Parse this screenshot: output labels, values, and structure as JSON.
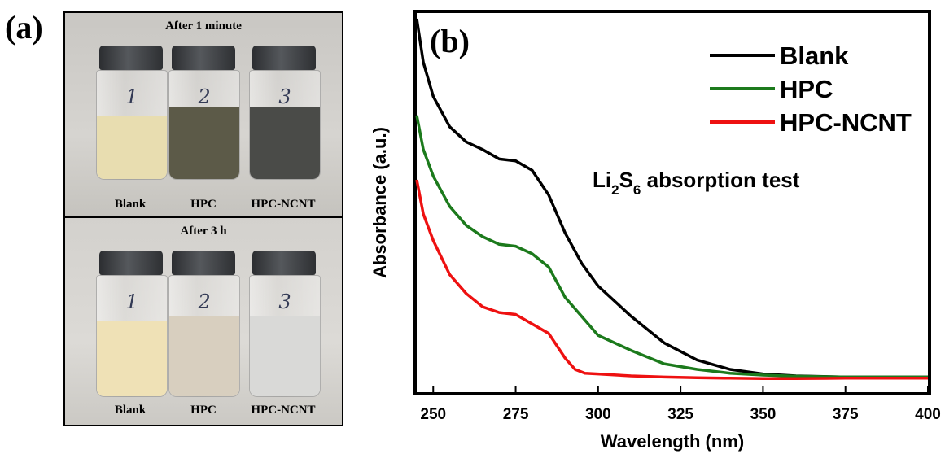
{
  "panel_a": {
    "label": "(a)",
    "top": {
      "title": "After 1 minute",
      "vials": [
        {
          "mark": "1",
          "name": "Blank",
          "liquid": "#e8ddb0"
        },
        {
          "mark": "2",
          "name": "HPC",
          "liquid": "#5c5a48"
        },
        {
          "mark": "3",
          "name": "HPC-NCNT",
          "liquid": "#4a4b48"
        }
      ]
    },
    "bottom": {
      "title": "After 3 h",
      "vials": [
        {
          "mark": "1",
          "name": "Blank",
          "liquid": "#efe1b6"
        },
        {
          "mark": "2",
          "name": "HPC",
          "liquid": "#d8cfbf"
        },
        {
          "mark": "3",
          "name": "HPC-NCNT",
          "liquid": "#d9d9d7"
        }
      ]
    }
  },
  "chart_data": {
    "type": "line",
    "panel_label": "(b)",
    "title": "",
    "annotation": {
      "main": "Li",
      "sub1": "2",
      "mid": "S",
      "sub2": "6",
      "rest": " absorption test"
    },
    "xlabel": "Wavelength (nm)",
    "ylabel": "Absorbance (a.u.)",
    "xlim": [
      245,
      400
    ],
    "ylim": [
      0,
      1
    ],
    "xticks": [
      250,
      275,
      300,
      325,
      350,
      375,
      400
    ],
    "show_yticks": false,
    "grid": false,
    "legend_position": "top-right",
    "series": [
      {
        "name": "Blank",
        "color": "#000000",
        "x": [
          245,
          247,
          250,
          255,
          260,
          265,
          270,
          275,
          280,
          285,
          290,
          295,
          300,
          310,
          320,
          330,
          340,
          350,
          360,
          375,
          400
        ],
        "y": [
          0.985,
          0.87,
          0.78,
          0.7,
          0.66,
          0.64,
          0.615,
          0.61,
          0.585,
          0.52,
          0.42,
          0.34,
          0.28,
          0.2,
          0.13,
          0.085,
          0.06,
          0.048,
          0.043,
          0.04,
          0.04
        ]
      },
      {
        "name": "HPC",
        "color": "#1c7a1c",
        "x": [
          245,
          247,
          250,
          255,
          260,
          265,
          270,
          275,
          280,
          285,
          290,
          295,
          300,
          310,
          320,
          330,
          340,
          350,
          360,
          375,
          400
        ],
        "y": [
          0.73,
          0.64,
          0.57,
          0.49,
          0.44,
          0.41,
          0.39,
          0.385,
          0.365,
          0.33,
          0.25,
          0.2,
          0.15,
          0.11,
          0.075,
          0.06,
          0.05,
          0.045,
          0.042,
          0.04,
          0.04
        ]
      },
      {
        "name": "HPC-NCNT",
        "color": "#ee1111",
        "x": [
          245,
          247,
          250,
          255,
          260,
          265,
          270,
          275,
          280,
          285,
          290,
          293,
          296,
          300,
          310,
          320,
          330,
          340,
          350,
          360,
          375,
          400
        ],
        "y": [
          0.56,
          0.47,
          0.4,
          0.31,
          0.26,
          0.225,
          0.21,
          0.205,
          0.18,
          0.155,
          0.09,
          0.06,
          0.05,
          0.048,
          0.043,
          0.04,
          0.038,
          0.037,
          0.036,
          0.036,
          0.037,
          0.037
        ]
      }
    ]
  }
}
